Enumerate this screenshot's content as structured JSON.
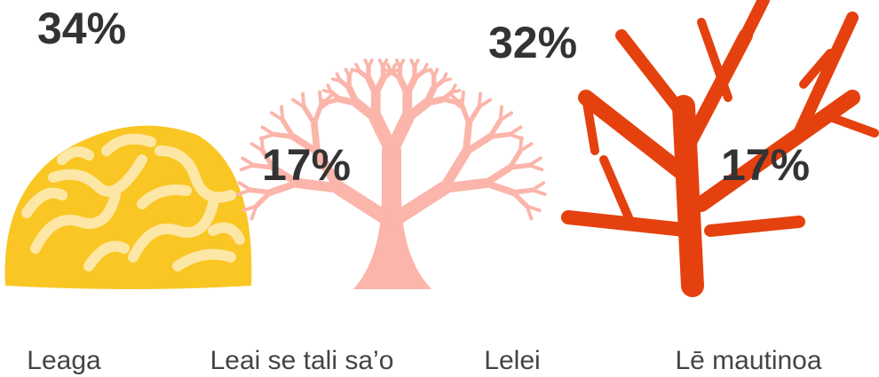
{
  "chart_data": {
    "type": "pictorial",
    "categories": [
      "Leaga",
      "Leai se tali sa’o",
      "Lelei",
      "Lē mautinoa"
    ],
    "values": [
      34,
      17,
      32,
      17
    ],
    "value_labels": [
      "34%",
      "17%",
      "32%",
      "17%"
    ],
    "colors": [
      "#f9c623",
      "#fbb5aa",
      "#e4410f",
      "#e4410f"
    ]
  }
}
